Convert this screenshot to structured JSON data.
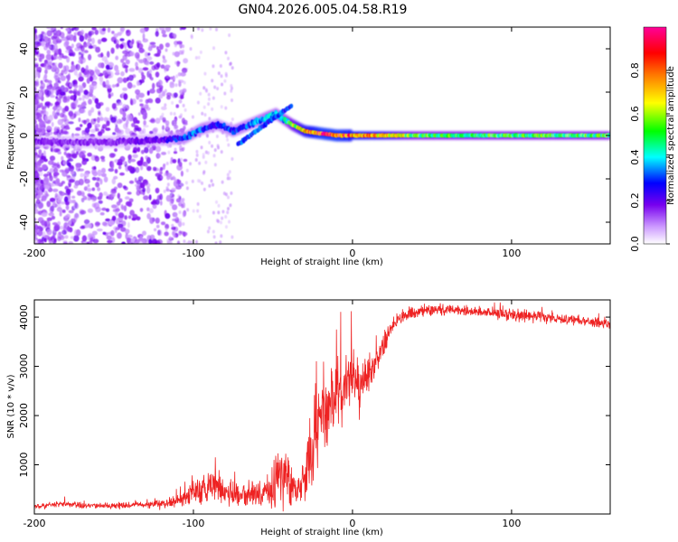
{
  "title": "GN04.2026.005.04.58.R19",
  "chart_data": [
    {
      "type": "heatmap",
      "title": "GN04.2026.005.04.58.R19",
      "xlabel": "Height of straight line (km)",
      "ylabel": "Frequency (Hz)",
      "xlim": [
        -200,
        162
      ],
      "ylim": [
        -50,
        50
      ],
      "x_ticks": [
        -200,
        -100,
        0,
        100
      ],
      "x_tick_labels": [
        "-200",
        "-100",
        "0",
        "100"
      ],
      "y_ticks": [
        -40,
        -20,
        0,
        20,
        40
      ],
      "y_tick_labels": [
        "-40",
        "-20",
        "0",
        "20",
        "40"
      ],
      "colorbar": {
        "label": "Normalized spectral amplitude",
        "range": [
          0,
          1
        ],
        "ticks": [
          0.0,
          0.2,
          0.4,
          0.6,
          0.8
        ],
        "tick_labels": [
          "0.0",
          "0.2",
          "0.4",
          "0.6",
          "0.8"
        ],
        "colors": [
          "#ffffff",
          "#cc99ff",
          "#7700ee",
          "#0000ff",
          "#00ffff",
          "#00ff00",
          "#ffff00",
          "#ff7700",
          "#ff0000",
          "#ff00aa"
        ]
      },
      "ridge": {
        "x": [
          -200,
          -150,
          -120,
          -105,
          -95,
          -85,
          -75,
          -65,
          -55,
          -48,
          -42,
          -38,
          -30,
          -20,
          -10,
          0,
          10,
          20,
          40,
          80,
          120,
          162
        ],
        "frequency": [
          -3,
          -3,
          -2,
          -1,
          3,
          5,
          2,
          5,
          8,
          10,
          7,
          5,
          2,
          1,
          0,
          0,
          0,
          0,
          0,
          0,
          0,
          0
        ],
        "amplitude": [
          0.15,
          0.15,
          0.2,
          0.3,
          0.3,
          0.25,
          0.3,
          0.3,
          0.35,
          0.35,
          0.4,
          0.55,
          0.75,
          0.85,
          0.85,
          0.8,
          0.75,
          0.7,
          0.5,
          0.5,
          0.5,
          0.5
        ]
      }
    },
    {
      "type": "line",
      "xlabel": "Height of straight line (km)",
      "ylabel": "SNR (10 * v/v)",
      "xlim": [
        -200,
        162
      ],
      "ylim": [
        0,
        4350
      ],
      "x_ticks": [
        -200,
        -100,
        0,
        100
      ],
      "x_tick_labels": [
        "-200",
        "-100",
        "0",
        "100"
      ],
      "y_ticks": [
        1000,
        2000,
        3000,
        4000
      ],
      "y_tick_labels": [
        "1000",
        "2000",
        "3000",
        "4000"
      ],
      "color": "#ee2222",
      "series": [
        {
          "name": "SNR",
          "x": [
            -200,
            -180,
            -160,
            -140,
            -120,
            -105,
            -95,
            -85,
            -75,
            -65,
            -55,
            -50,
            -45,
            -40,
            -35,
            -30,
            -25,
            -20,
            -15,
            -10,
            -5,
            0,
            5,
            10,
            15,
            20,
            25,
            30,
            40,
            50,
            60,
            80,
            100,
            120,
            140,
            162
          ],
          "values": [
            150,
            200,
            160,
            180,
            200,
            350,
            500,
            550,
            400,
            350,
            450,
            500,
            800,
            600,
            450,
            700,
            1500,
            2000,
            2200,
            2400,
            2600,
            2800,
            2700,
            2900,
            3100,
            3500,
            3800,
            4000,
            4100,
            4150,
            4150,
            4100,
            4050,
            4000,
            3950,
            3850
          ],
          "noise": [
            60,
            70,
            60,
            60,
            80,
            200,
            300,
            350,
            280,
            250,
            350,
            400,
            700,
            500,
            300,
            500,
            900,
            900,
            800,
            700,
            650,
            600,
            600,
            500,
            400,
            300,
            200,
            150,
            120,
            110,
            110,
            110,
            120,
            120,
            110,
            100
          ]
        }
      ]
    }
  ]
}
